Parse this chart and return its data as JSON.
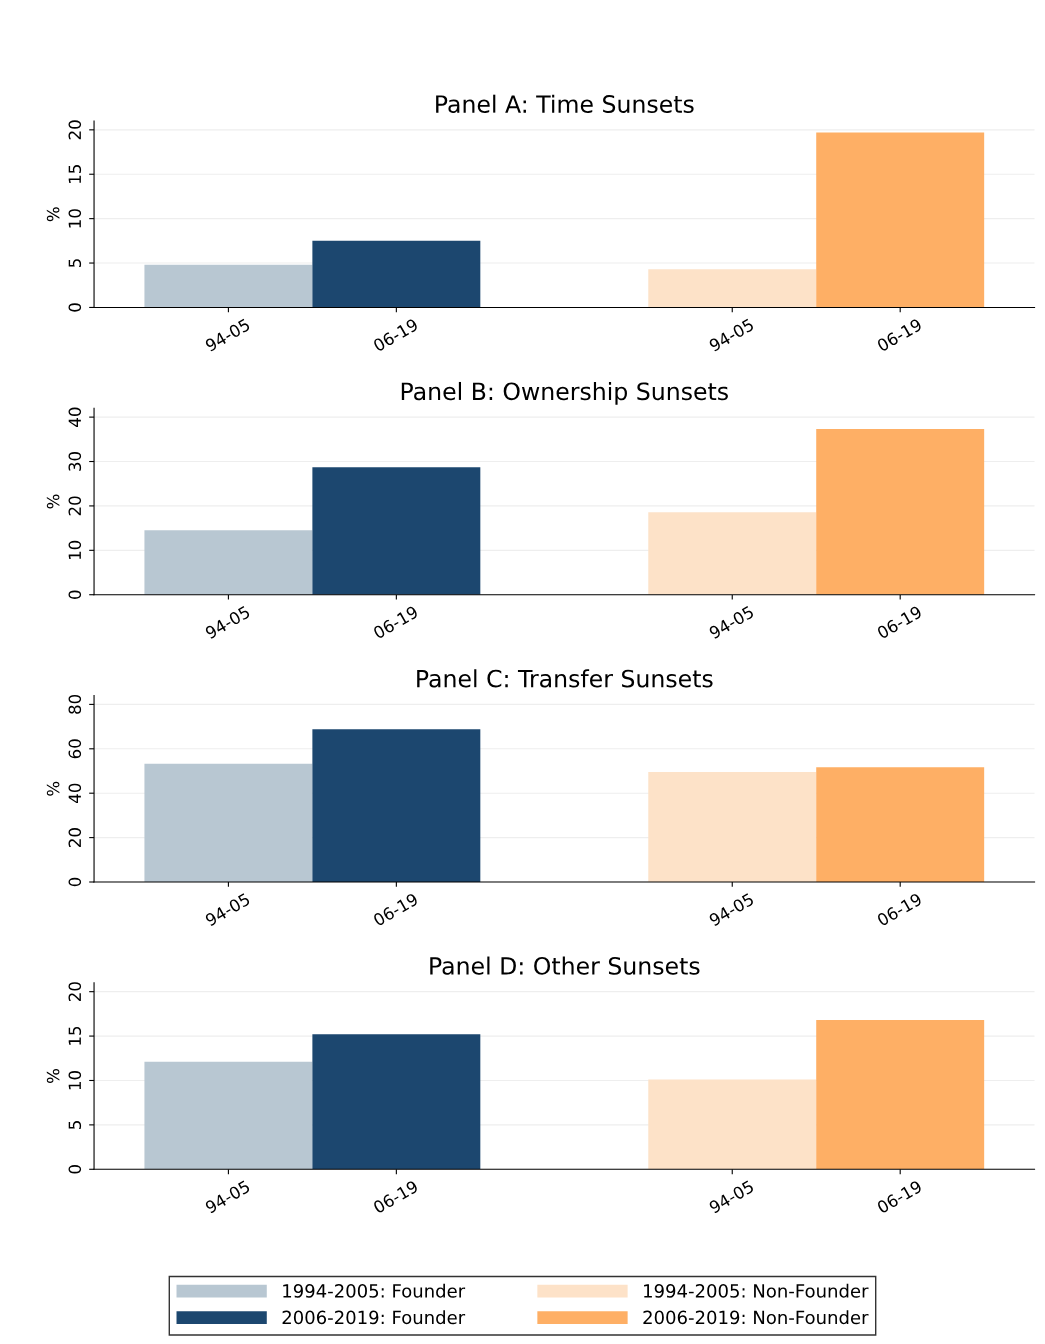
{
  "chart_data": [
    {
      "type": "bar",
      "title": "Panel A: Time Sunsets",
      "ylabel": "%",
      "categories": [
        "94-05",
        "06-19",
        null,
        "94-05",
        "06-19"
      ],
      "ylim": [
        0,
        21
      ],
      "yticks": [
        0,
        5,
        10,
        15,
        20
      ],
      "grid": "y",
      "legend": false,
      "series": [
        {
          "color": "#b8c7d2",
          "values": [
            4.8,
            null,
            null,
            null,
            null
          ]
        },
        {
          "color": "#1c476f",
          "values": [
            null,
            7.5,
            null,
            null,
            null
          ]
        },
        {
          "color": "#fde2c8",
          "values": [
            null,
            null,
            null,
            4.3,
            null
          ]
        },
        {
          "color": "#feaf65",
          "values": [
            null,
            null,
            null,
            null,
            19.7
          ]
        }
      ]
    },
    {
      "type": "bar",
      "title": "Panel B: Ownership Sunsets",
      "ylabel": "%",
      "categories": [
        "94-05",
        "06-19",
        null,
        "94-05",
        "06-19"
      ],
      "ylim": [
        0,
        42
      ],
      "yticks": [
        0,
        10,
        20,
        30,
        40
      ],
      "grid": "y",
      "legend": false,
      "series": [
        {
          "color": "#b8c7d2",
          "values": [
            14.5,
            null,
            null,
            null,
            null
          ]
        },
        {
          "color": "#1c476f",
          "values": [
            null,
            28.7,
            null,
            null,
            null
          ]
        },
        {
          "color": "#fde2c8",
          "values": [
            null,
            null,
            null,
            18.6,
            null
          ]
        },
        {
          "color": "#feaf65",
          "values": [
            null,
            null,
            null,
            null,
            37.3
          ]
        }
      ]
    },
    {
      "type": "bar",
      "title": "Panel C: Transfer Sunsets",
      "ylabel": "%",
      "categories": [
        "94-05",
        "06-19",
        null,
        "94-05",
        "06-19"
      ],
      "ylim": [
        0,
        84
      ],
      "yticks": [
        0,
        20,
        40,
        60,
        80
      ],
      "grid": "y",
      "legend": false,
      "series": [
        {
          "color": "#b8c7d2",
          "values": [
            53.3,
            null,
            null,
            null,
            null
          ]
        },
        {
          "color": "#1c476f",
          "values": [
            null,
            68.8,
            null,
            null,
            null
          ]
        },
        {
          "color": "#fde2c8",
          "values": [
            null,
            null,
            null,
            49.6,
            null
          ]
        },
        {
          "color": "#feaf65",
          "values": [
            null,
            null,
            null,
            null,
            51.7
          ]
        }
      ]
    },
    {
      "type": "bar",
      "title": "Panel D: Other Sunsets",
      "ylabel": "%",
      "categories": [
        "94-05",
        "06-19",
        null,
        "94-05",
        "06-19"
      ],
      "ylim": [
        0,
        21
      ],
      "yticks": [
        0,
        5,
        10,
        15,
        20
      ],
      "grid": "y",
      "legend": "bottom",
      "series": [
        {
          "name": "1994-2005: Founder",
          "color": "#b8c7d2",
          "values": [
            12.1,
            null,
            null,
            null,
            null
          ]
        },
        {
          "name": "2006-2019: Founder",
          "color": "#1c476f",
          "values": [
            null,
            15.2,
            null,
            null,
            null
          ]
        },
        {
          "name": "1994-2005: Non-Founder",
          "color": "#fde2c8",
          "values": [
            null,
            null,
            null,
            10.1,
            null
          ]
        },
        {
          "name": "2006-2019: Non-Founder",
          "color": "#feaf65",
          "values": [
            null,
            null,
            null,
            null,
            16.8
          ]
        }
      ]
    }
  ]
}
